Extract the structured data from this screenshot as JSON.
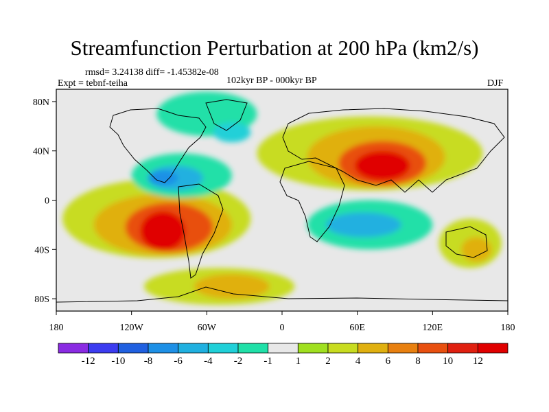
{
  "title": "Streamfunction Perturbation at 200 hPa (km2/s)",
  "stats": "rmsd= 3.24138 diff= -1.45382e-08",
  "experiment": "Expt = tebnf-teiha",
  "period": "102kyr BP - 000kyr BP",
  "season": "DJF",
  "lat_ticks": [
    "80N",
    "40N",
    "0",
    "40S",
    "80S"
  ],
  "lon_ticks": [
    "180",
    "120W",
    "60W",
    "0",
    "60E",
    "120E",
    "180"
  ],
  "colorbar": {
    "labels": [
      "-12",
      "-10",
      "-8",
      "-6",
      "-4",
      "-2",
      "-1",
      "1",
      "2",
      "4",
      "6",
      "8",
      "10",
      "12"
    ],
    "colors": [
      "#8a2be2",
      "#3c3cf0",
      "#2060e0",
      "#1e90e6",
      "#20b0e0",
      "#20d0d8",
      "#20e0a8",
      "#e8e8e8",
      "#a0e020",
      "#c8dc20",
      "#e0b010",
      "#e88010",
      "#e85010",
      "#e02010",
      "#e00000"
    ]
  },
  "map": {
    "background": "#e8e8e8",
    "blobs": [
      {
        "lon": -95,
        "lat": -25,
        "rx": 18,
        "ry": 16,
        "value": 12
      },
      {
        "lon": -90,
        "lat": -22,
        "rx": 35,
        "ry": 20,
        "value": 8
      },
      {
        "lon": -95,
        "lat": -20,
        "rx": 55,
        "ry": 25,
        "value": 4
      },
      {
        "lon": -100,
        "lat": -15,
        "rx": 75,
        "ry": 32,
        "value": 2
      },
      {
        "lon": 80,
        "lat": 28,
        "rx": 22,
        "ry": 12,
        "value": 12
      },
      {
        "lon": 80,
        "lat": 30,
        "rx": 35,
        "ry": 18,
        "value": 8
      },
      {
        "lon": 75,
        "lat": 35,
        "rx": 55,
        "ry": 25,
        "value": 4
      },
      {
        "lon": 70,
        "lat": 38,
        "rx": 90,
        "ry": 30,
        "value": 2
      },
      {
        "lon": -80,
        "lat": 20,
        "rx": 40,
        "ry": 18,
        "value": -2
      },
      {
        "lon": -85,
        "lat": 18,
        "rx": 22,
        "ry": 10,
        "value": -6
      },
      {
        "lon": -95,
        "lat": 18,
        "rx": 12,
        "ry": 6,
        "value": -8
      },
      {
        "lon": 70,
        "lat": -20,
        "rx": 50,
        "ry": 20,
        "value": -2
      },
      {
        "lon": 65,
        "lat": -20,
        "rx": 30,
        "ry": 10,
        "value": -6
      },
      {
        "lon": -60,
        "lat": 70,
        "rx": 40,
        "ry": 18,
        "value": -2
      },
      {
        "lon": -40,
        "lat": 55,
        "rx": 15,
        "ry": 8,
        "value": -4
      },
      {
        "lon": -50,
        "lat": -70,
        "rx": 60,
        "ry": 15,
        "value": 2
      },
      {
        "lon": -40,
        "lat": -70,
        "rx": 30,
        "ry": 10,
        "value": 4
      },
      {
        "lon": 150,
        "lat": -35,
        "rx": 25,
        "ry": 20,
        "value": 2
      },
      {
        "lon": 155,
        "lat": -40,
        "rx": 12,
        "ry": 10,
        "value": 4
      }
    ]
  }
}
